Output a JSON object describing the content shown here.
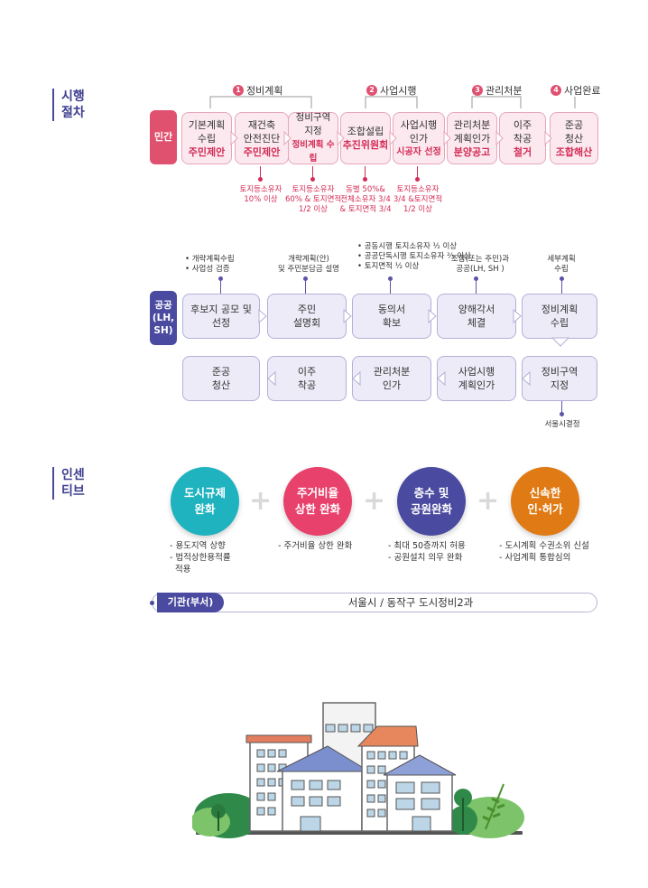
{
  "sections": {
    "procedure": {
      "line1": "시행",
      "line2": "절차"
    },
    "incentive": {
      "line1": "인센",
      "line2": "티브"
    }
  },
  "phases": [
    {
      "num": "1",
      "label": "정비계획"
    },
    {
      "num": "2",
      "label": "사업시행"
    },
    {
      "num": "3",
      "label": "관리처분"
    },
    {
      "num": "4",
      "label": "사업완료"
    }
  ],
  "private": {
    "tag": "민간",
    "steps": [
      {
        "l1": "기본계획",
        "l2": "수립",
        "hl": "주민제안"
      },
      {
        "l1": "재건축",
        "l2": "안전진단",
        "hl": "주민제안"
      },
      {
        "l1": "정비구역",
        "l2": "지정",
        "hl": "정비계획 수립"
      },
      {
        "l1": "조합설립",
        "l2": "",
        "hl": "추진위원회"
      },
      {
        "l1": "사업시행",
        "l2": "인가",
        "hl": "시공자 선정"
      },
      {
        "l1": "관리처분",
        "l2": "계획인가",
        "hl": "분양공고"
      },
      {
        "l1": "이주",
        "l2": "착공",
        "hl": "철거"
      },
      {
        "l1": "준공",
        "l2": "청산",
        "hl": "조합해산"
      }
    ],
    "notes": [
      {
        "l1": "토지등소유자",
        "l2": "10% 이상",
        "l3": ""
      },
      {
        "l1": "토지등소유자",
        "l2": "60% & 토지면적",
        "l3": "1/2 이상"
      },
      {
        "l1": "동별 50%&",
        "l2": "전체소유자 3/4",
        "l3": "& 토지면적 3/4"
      },
      {
        "l1": "토지등소유자",
        "l2": "3/4 &토지면적",
        "l3": "1/2 이상"
      }
    ]
  },
  "public": {
    "tag": "공공\n(LH,\nSH)",
    "tag_l1": "공공",
    "tag_l2": "(LH,",
    "tag_l3": "SH)",
    "row1": [
      {
        "l1": "후보지 공모 및",
        "l2": "선정"
      },
      {
        "l1": "주민",
        "l2": "설명회"
      },
      {
        "l1": "동의서",
        "l2": "확보"
      },
      {
        "l1": "양해각서",
        "l2": "체결"
      },
      {
        "l1": "정비계획",
        "l2": "수립"
      }
    ],
    "row2": [
      {
        "l1": "준공",
        "l2": "청산"
      },
      {
        "l1": "이주",
        "l2": "착공"
      },
      {
        "l1": "관리처분",
        "l2": "인가"
      },
      {
        "l1": "사업시행",
        "l2": "계획인가"
      },
      {
        "l1": "정비구역",
        "l2": "지정"
      }
    ],
    "notes": [
      {
        "l1": "• 개략계획수립",
        "l2": "• 사업성 검증",
        "l3": ""
      },
      {
        "l1": "개략계획(안)",
        "l2": "및 주민분담금 설명",
        "l3": ""
      },
      {
        "l1": "• 공동시행 토지소유자 ½ 이상",
        "l2": "• 공공단독시행 토지소유자 ⅔ 이상",
        "l3": "• 토지면적 ½ 이상"
      },
      {
        "l1": "조합(또는 주민)과",
        "l2": "공공(LH, SH )",
        "l3": ""
      },
      {
        "l1": "세부계획",
        "l2": "수립",
        "l3": ""
      }
    ],
    "bottom_note": "서울시결정"
  },
  "incentives": [
    {
      "l1": "도시규제",
      "l2": "완화",
      "color": "#1fb3bf",
      "notes": [
        "- 용도지역 상향",
        "- 법적상한용적률",
        "  적용"
      ]
    },
    {
      "l1": "주거비율",
      "l2": "상한 완화",
      "color": "#e8416b",
      "notes": [
        "- 주거비율 상한 완화"
      ]
    },
    {
      "l1": "층수 및",
      "l2": "공원완화",
      "color": "#4a4aa0",
      "notes": [
        "- 최대 50층까지 허용",
        "- 공원설치 의무 완화"
      ]
    },
    {
      "l1": "신속한",
      "l2": "인·허가",
      "color": "#e07a14",
      "notes": [
        "- 도시계획 수권소위 신설",
        "- 사업계획 통합심의"
      ]
    }
  ],
  "agency": {
    "label": "기관(부서)",
    "value": "서울시  / 동작구 도시정비2과"
  },
  "colors": {
    "accent_red": "#e0506f",
    "accent_purple": "#5a55a8",
    "navy": "#3d3d8f"
  }
}
